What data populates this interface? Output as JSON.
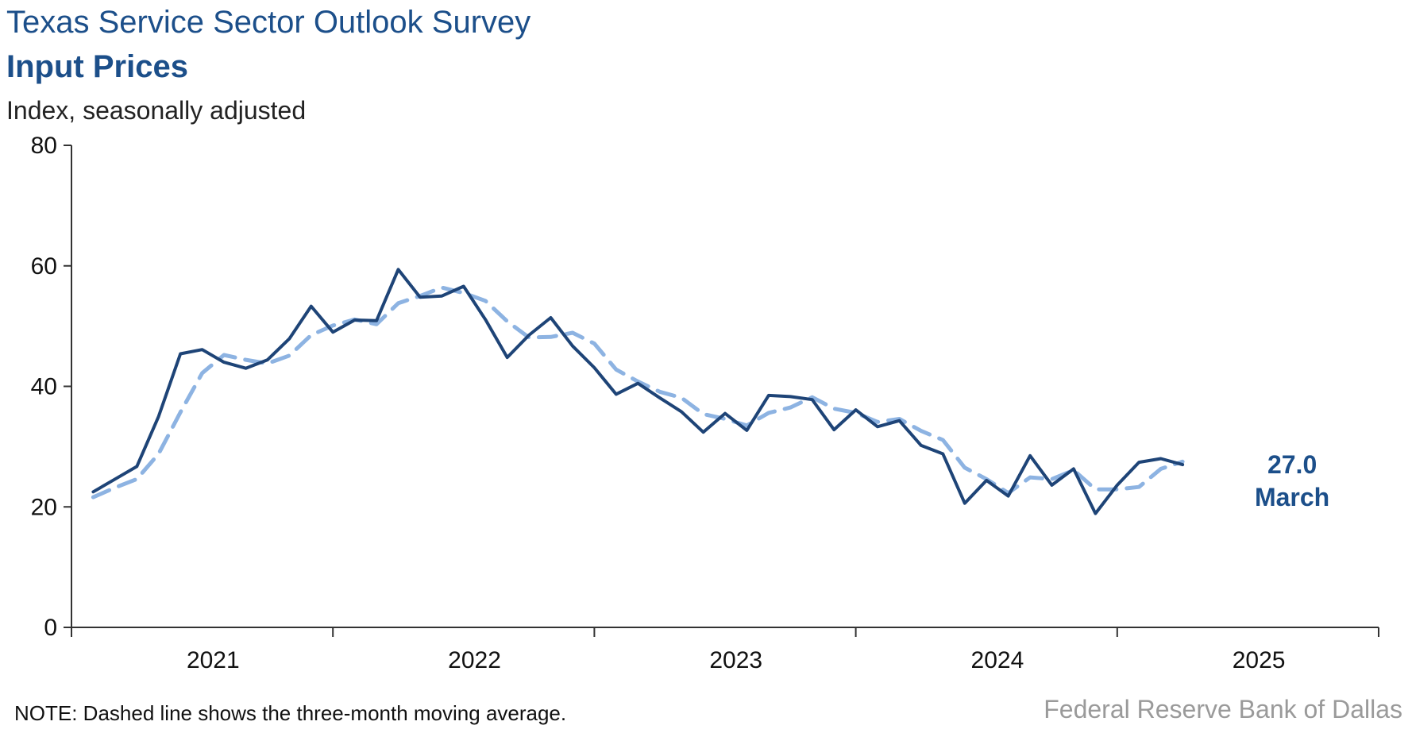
{
  "title": "Texas Service Sector Outlook Survey",
  "subtitle": "Input Prices",
  "note": "NOTE: Dashed line shows the three-month moving average.",
  "source": "Federal Reserve Bank of Dallas",
  "colors": {
    "title": "#1c4f8a",
    "actual": "#1e4477",
    "moving_average": "#8db3e2",
    "source": "#9a9a9a"
  },
  "chart_data": {
    "type": "line",
    "ylabel": "Index, seasonally adjusted",
    "xlabel": "",
    "ylim": [
      0,
      80
    ],
    "yticks": [
      0,
      20,
      40,
      60,
      80
    ],
    "xlim": [
      "2020-12",
      "2025-12"
    ],
    "xtick_labels": [
      "2021",
      "2022",
      "2023",
      "2024",
      "2025"
    ],
    "grid": false,
    "x": [
      "2021-01",
      "2021-02",
      "2021-03",
      "2021-04",
      "2021-05",
      "2021-06",
      "2021-07",
      "2021-08",
      "2021-09",
      "2021-10",
      "2021-11",
      "2021-12",
      "2022-01",
      "2022-02",
      "2022-03",
      "2022-04",
      "2022-05",
      "2022-06",
      "2022-07",
      "2022-08",
      "2022-09",
      "2022-10",
      "2022-11",
      "2022-12",
      "2023-01",
      "2023-02",
      "2023-03",
      "2023-04",
      "2023-05",
      "2023-06",
      "2023-07",
      "2023-08",
      "2023-09",
      "2023-10",
      "2023-11",
      "2023-12",
      "2024-01",
      "2024-02",
      "2024-03",
      "2024-04",
      "2024-05",
      "2024-06",
      "2024-07",
      "2024-08",
      "2024-09",
      "2024-10",
      "2024-11",
      "2024-12",
      "2025-01",
      "2025-02",
      "2025-03"
    ],
    "series": [
      {
        "name": "",
        "style": "solid",
        "values": [
          22.5,
          24.6,
          26.7,
          35.0,
          45.4,
          46.1,
          44.0,
          43.0,
          44.4,
          47.9,
          53.3,
          49.0,
          51.0,
          50.9,
          59.4,
          54.8,
          55.0,
          56.6,
          51.1,
          44.8,
          48.5,
          51.4,
          46.7,
          43.1,
          38.7,
          40.5,
          38.1,
          35.8,
          32.4,
          35.5,
          32.7,
          38.5,
          38.3,
          37.8,
          32.8,
          36.1,
          33.3,
          34.3,
          30.2,
          28.8,
          20.6,
          24.4,
          21.8,
          28.5,
          23.6,
          26.3,
          18.9,
          23.6,
          27.4,
          28.0,
          27.0
        ]
      },
      {
        "name": "",
        "style": "dashed",
        "values": [
          21.6,
          23.2,
          24.6,
          28.8,
          35.7,
          42.2,
          45.2,
          44.4,
          43.8,
          45.1,
          48.5,
          50.1,
          51.1,
          50.3,
          53.8,
          55.0,
          56.4,
          55.5,
          54.2,
          50.8,
          48.1,
          48.2,
          48.9,
          47.1,
          42.8,
          40.8,
          39.1,
          38.1,
          35.4,
          34.6,
          33.5,
          35.6,
          36.5,
          38.2,
          36.3,
          35.6,
          34.1,
          34.6,
          32.6,
          31.1,
          26.5,
          24.6,
          22.3,
          24.9,
          24.6,
          26.1,
          22.9,
          22.9,
          23.3,
          26.3,
          27.5
        ]
      }
    ],
    "annotation": {
      "value_label": "27.0",
      "month_label": "March"
    }
  }
}
